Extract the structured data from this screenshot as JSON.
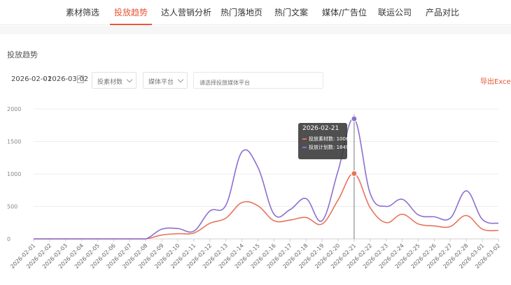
{
  "nav": {
    "tabs": [
      {
        "label": "素材筛选",
        "active": false
      },
      {
        "label": "投放趋势",
        "active": true
      },
      {
        "label": "达人营销分析",
        "active": false
      },
      {
        "label": "热门落地页",
        "active": false
      },
      {
        "label": "热门文案",
        "active": false
      },
      {
        "label": "媒体/广告位",
        "active": false
      },
      {
        "label": "联运公司",
        "active": false
      },
      {
        "label": "产品对比",
        "active": false
      }
    ]
  },
  "section_title": "投放趋势",
  "filters": {
    "start_date": "2026-02-01",
    "separator": "-",
    "end_date": "2026-03-02",
    "metric_select": "投素材数",
    "media_select": "媒体平台",
    "search_placeholder": "请选择投放媒体平台",
    "export_label": "导出Excel"
  },
  "tooltip": {
    "date": "2026-02-21",
    "rows": [
      {
        "label": "投放素材数: 1006",
        "color": "#e8735a"
      },
      {
        "label": "投放计划数: 1849",
        "color": "#8c6fd0"
      }
    ]
  },
  "colors": {
    "accent": "#e8563a",
    "series_orange": "#e8735a",
    "series_purple": "#8c6fd0"
  },
  "chart_data": {
    "type": "line",
    "x": [
      "2026-02-01",
      "2026-02-02",
      "2026-02-03",
      "2026-02-04",
      "2026-02-05",
      "2026-02-06",
      "2026-02-07",
      "2026-02-08",
      "2026-02-09",
      "2026-02-10",
      "2026-02-11",
      "2026-02-12",
      "2026-02-13",
      "2026-02-14",
      "2026-02-15",
      "2026-02-16",
      "2026-02-17",
      "2026-02-18",
      "2026-02-19",
      "2026-02-20",
      "2026-02-21",
      "2026-02-22",
      "2026-02-23",
      "2026-02-24",
      "2026-02-25",
      "2026-02-26",
      "2026-02-27",
      "2026-02-28",
      "2026-03-01",
      "2026-03-02"
    ],
    "series": [
      {
        "name": "投放素材数",
        "color": "#e8735a",
        "values": [
          0,
          0,
          0,
          0,
          0,
          0,
          0,
          0,
          60,
          80,
          90,
          240,
          320,
          560,
          510,
          280,
          290,
          330,
          230,
          600,
          1006,
          480,
          250,
          380,
          230,
          200,
          190,
          360,
          150,
          130
        ]
      },
      {
        "name": "投放计划数",
        "color": "#8c6fd0",
        "values": [
          0,
          0,
          0,
          0,
          0,
          0,
          0,
          0,
          150,
          160,
          120,
          430,
          520,
          1340,
          1100,
          380,
          450,
          620,
          280,
          1050,
          1849,
          700,
          500,
          610,
          370,
          340,
          320,
          740,
          300,
          240
        ]
      }
    ],
    "yticks": [
      0,
      500,
      1000,
      1500,
      2000
    ],
    "ylim": [
      0,
      2000
    ],
    "highlight_index": 20,
    "grid": "horizontal"
  }
}
